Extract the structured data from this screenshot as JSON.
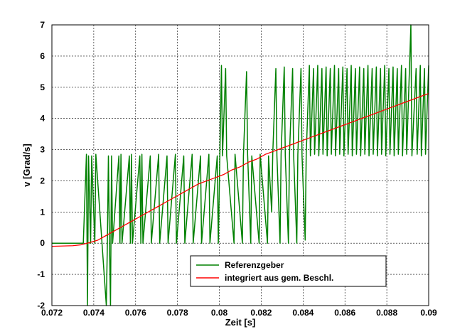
{
  "chart_data": {
    "type": "line",
    "xlabel": "Zeit [s]",
    "ylabel": "v [Grad/s]",
    "xlim": [
      0.072,
      0.09
    ],
    "ylim": [
      -2,
      7
    ],
    "xticks": [
      "0.072",
      "0.074",
      "0.076",
      "0.078",
      "0.08",
      "0.082",
      "0.084",
      "0.086",
      "0.088",
      "0.09"
    ],
    "yticks": [
      "-2",
      "-1",
      "0",
      "1",
      "2",
      "3",
      "4",
      "5",
      "6",
      "7"
    ],
    "grid": true,
    "legend_position": "bottom-right",
    "series": [
      {
        "name": "Referenzgeber",
        "color": "#008000",
        "x": [
          0.072,
          0.0735,
          0.07365,
          0.0737,
          0.07375,
          0.07385,
          0.0739,
          0.07405,
          0.0741,
          0.0746,
          0.07465,
          0.0747,
          0.07475,
          0.0748,
          0.07485,
          0.0749,
          0.0752,
          0.07525,
          0.0753,
          0.07535,
          0.0757,
          0.07575,
          0.0758,
          0.07585,
          0.0762,
          0.07625,
          0.0763,
          0.07635,
          0.0767,
          0.07675,
          0.0771,
          0.07715,
          0.0775,
          0.07755,
          0.0779,
          0.07795,
          0.0783,
          0.07835,
          0.0787,
          0.07875,
          0.0791,
          0.07915,
          0.0795,
          0.07955,
          0.0799,
          0.07995,
          0.0801,
          0.08015,
          0.0803,
          0.08035,
          0.0807,
          0.08075,
          0.0811,
          0.08115,
          0.0813,
          0.08135,
          0.0815,
          0.08155,
          0.0819,
          0.08195,
          0.0823,
          0.08235,
          0.0825,
          0.08255,
          0.0827,
          0.08275,
          0.0829,
          0.08295,
          0.0831,
          0.08315,
          0.0833,
          0.08335,
          0.0835,
          0.08355,
          0.0837,
          0.08375,
          0.0839,
          0.08395,
          0.0841,
          0.08415,
          0.0843,
          0.08435,
          0.0845,
          0.08455,
          0.0847,
          0.08475,
          0.0849,
          0.08495,
          0.0851,
          0.08515,
          0.0853,
          0.08535,
          0.0855,
          0.08555,
          0.0857,
          0.08575,
          0.0859,
          0.08595,
          0.0861,
          0.08615,
          0.0863,
          0.08635,
          0.0865,
          0.08655,
          0.0867,
          0.08675,
          0.0869,
          0.08695,
          0.0871,
          0.08715,
          0.0873,
          0.08735,
          0.0875,
          0.08755,
          0.0877,
          0.08775,
          0.0879,
          0.08795,
          0.0881,
          0.08815,
          0.0883,
          0.08835,
          0.0885,
          0.08855,
          0.0887,
          0.08875,
          0.0889,
          0.08895,
          0.08915,
          0.0892,
          0.0894,
          0.08945,
          0.0896,
          0.08965,
          0.0898,
          0.08985,
          0.09
        ],
        "values": [
          0,
          0,
          2.85,
          -2,
          2.8,
          0,
          2.8,
          0,
          2.85,
          -2,
          0,
          2.8,
          0,
          -2,
          2.8,
          0,
          2.8,
          0,
          2.85,
          0,
          2.8,
          0,
          2.85,
          0,
          2.8,
          0,
          2.85,
          0,
          2.8,
          0,
          2.85,
          0,
          2.8,
          0,
          2.85,
          0,
          2.8,
          0,
          2.85,
          0,
          2.8,
          0,
          2.85,
          0,
          2.8,
          0,
          5.7,
          2.8,
          5.6,
          2.8,
          0,
          2.85,
          0,
          2.8,
          5.5,
          2.85,
          0,
          2.8,
          0,
          2.85,
          0,
          2.8,
          1.0,
          2.85,
          5.6,
          2.8,
          0,
          2.85,
          5.65,
          2.8,
          0,
          2.85,
          5.6,
          2.8,
          0,
          2.85,
          5.6,
          2.8,
          0.1,
          2.85,
          5.7,
          2.8,
          5.6,
          2.85,
          5.7,
          2.8,
          5.6,
          2.85,
          5.65,
          2.8,
          5.6,
          2.85,
          5.7,
          2.8,
          5.6,
          2.85,
          5.65,
          2.8,
          5.6,
          2.85,
          5.7,
          2.8,
          5.6,
          2.85,
          5.65,
          2.8,
          5.6,
          2.85,
          5.7,
          2.8,
          5.6,
          2.85,
          5.65,
          2.8,
          5.6,
          2.85,
          5.7,
          2.8,
          5.6,
          2.85,
          5.65,
          2.8,
          5.6,
          2.85,
          5.7,
          2.8,
          5.6,
          2.85,
          7.0,
          2.8,
          5.6,
          2.85,
          5.7,
          2.8,
          5.6,
          2.85,
          5.7
        ]
      },
      {
        "name": "integriert aus gem. Beschl.",
        "color": "#ff0000",
        "x": [
          0.072,
          0.073,
          0.0734,
          0.0738,
          0.0742,
          0.0746,
          0.075,
          0.0754,
          0.0758,
          0.0762,
          0.0766,
          0.077,
          0.0774,
          0.0778,
          0.0782,
          0.0786,
          0.079,
          0.0794,
          0.0798,
          0.0802,
          0.0806,
          0.081,
          0.0814,
          0.0818,
          0.0822,
          0.0826,
          0.083,
          0.0834,
          0.0838,
          0.0842,
          0.0846,
          0.085,
          0.0854,
          0.0858,
          0.0862,
          0.0866,
          0.087,
          0.0874,
          0.0878,
          0.0882,
          0.0886,
          0.089,
          0.0894,
          0.0898,
          0.09
        ],
        "values": [
          -0.1,
          -0.08,
          -0.05,
          0.02,
          0.1,
          0.25,
          0.4,
          0.55,
          0.7,
          0.85,
          1.0,
          1.15,
          1.3,
          1.45,
          1.6,
          1.75,
          1.9,
          2.0,
          2.1,
          2.2,
          2.35,
          2.45,
          2.6,
          2.7,
          2.85,
          2.95,
          3.05,
          3.15,
          3.25,
          3.35,
          3.45,
          3.55,
          3.65,
          3.75,
          3.85,
          3.95,
          4.05,
          4.15,
          4.25,
          4.35,
          4.45,
          4.55,
          4.65,
          4.75,
          4.8
        ]
      }
    ]
  }
}
